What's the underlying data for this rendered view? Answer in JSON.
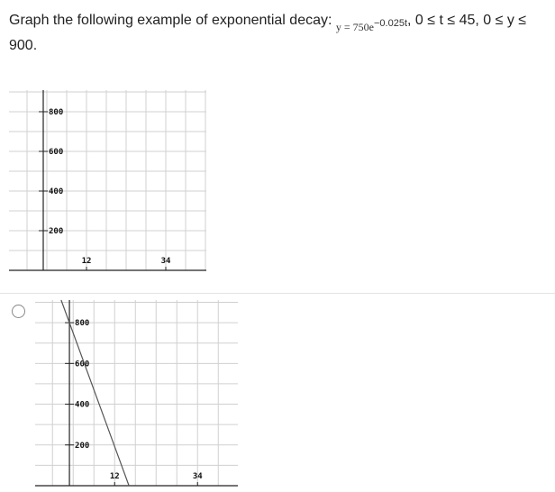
{
  "question": {
    "prompt": "Graph the following example of exponential decay:",
    "equation_base": "y = 750e",
    "equation_exponent": "−0.025t",
    "domain_text": ", 0 ≤ t ≤ 45, 0 ≤ y ≤ 900."
  },
  "chart_data": [
    {
      "type": "line",
      "title": "",
      "xlabel": "",
      "ylabel": "",
      "xlim": [
        -9.5,
        45.25
      ],
      "ylim": [
        0,
        909
      ],
      "x_ticks": [
        12,
        34
      ],
      "x_tick_labels": [
        "12",
        "34"
      ],
      "y_ticks": [
        200,
        400,
        600,
        800
      ],
      "y_tick_labels": [
        "200",
        "400",
        "600",
        "800"
      ],
      "grid": true,
      "series": []
    },
    {
      "type": "line",
      "title": "",
      "xlabel": "",
      "ylabel": "",
      "xlim": [
        -9.1,
        44.7
      ],
      "ylim": [
        0,
        911
      ],
      "x_ticks": [
        12,
        34
      ],
      "x_tick_labels": [
        "12",
        "34"
      ],
      "y_ticks": [
        200,
        400,
        600,
        800
      ],
      "y_tick_labels": [
        "200",
        "400",
        "600",
        "800"
      ],
      "grid": true,
      "series": [
        {
          "x": [
            -2.2,
            15.8
          ],
          "y": [
            911,
            0
          ],
          "color": "#555555"
        }
      ]
    }
  ],
  "colors": {
    "grid": "#d0d0d0",
    "axis": "#222222",
    "divider": "#e3e3e3"
  },
  "answer_option": {
    "selected": false,
    "icon": "radio-unchecked-icon"
  }
}
